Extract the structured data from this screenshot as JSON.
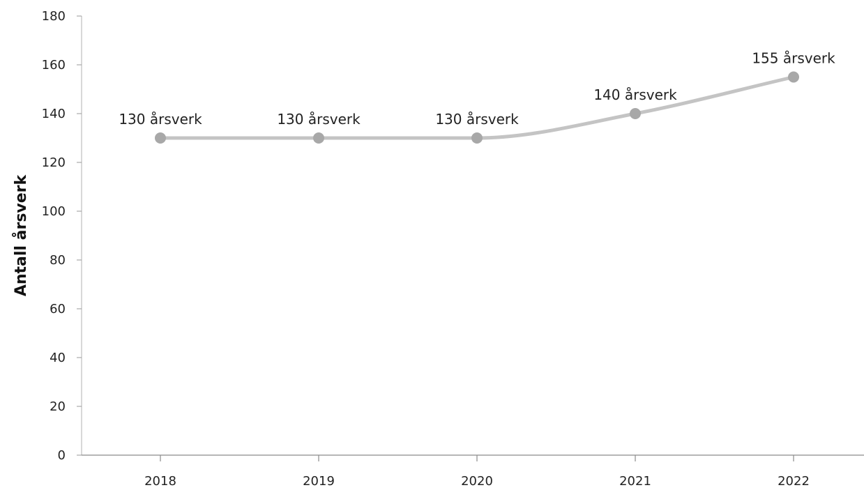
{
  "chart_data": {
    "type": "line",
    "title": "",
    "xlabel": "",
    "ylabel": "Antall årsverk",
    "categories": [
      "2018",
      "2019",
      "2020",
      "2021",
      "2022"
    ],
    "series": [
      {
        "values": [
          130,
          130,
          130,
          140,
          155
        ],
        "data_labels": [
          "130 årsverk",
          "130 årsverk",
          "130 årsverk",
          "140 årsverk",
          "155 årsverk"
        ],
        "color": "#c4c4c4",
        "marker_color": "#a8a8a8"
      }
    ],
    "ylim": [
      0,
      180
    ],
    "yticks": [
      "0",
      "20",
      "40",
      "60",
      "80",
      "100",
      "120",
      "140",
      "160",
      "180"
    ],
    "grid": false,
    "legend": "none",
    "smooth": true
  }
}
